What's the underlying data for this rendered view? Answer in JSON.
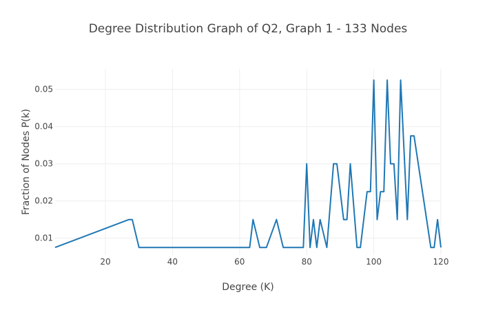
{
  "chart_data": {
    "type": "line",
    "title": "Degree Distribution Graph of Q2, Graph 1 - 133 Nodes",
    "xlabel": "Degree (K)",
    "ylabel": "Fraction of Nodes P(k)",
    "xlim": [
      5,
      120
    ],
    "ylim": [
      0.0055,
      0.0555
    ],
    "x_ticks": [
      20,
      40,
      60,
      80,
      100,
      120
    ],
    "y_ticks": [
      0.01,
      0.02,
      0.03,
      0.04,
      0.05
    ],
    "y_tick_labels": [
      "0.01",
      "0.02",
      "0.03",
      "0.04",
      "0.05"
    ],
    "grid": true,
    "series": [
      {
        "color": "#1f77b4",
        "x": [
          5,
          27,
          28,
          30,
          63,
          64,
          66,
          68,
          71,
          73,
          79,
          80,
          81,
          82,
          83,
          84,
          86,
          88,
          89,
          91,
          92,
          93,
          95,
          96,
          98,
          99,
          100,
          101,
          102,
          103,
          104,
          105,
          106,
          107,
          108,
          110,
          111,
          112,
          117,
          118,
          119,
          120
        ],
        "y": [
          0.0075,
          0.015,
          0.015,
          0.0075,
          0.0075,
          0.015,
          0.0075,
          0.0075,
          0.015,
          0.0075,
          0.0075,
          0.03,
          0.0075,
          0.015,
          0.0075,
          0.015,
          0.0075,
          0.03,
          0.03,
          0.015,
          0.015,
          0.03,
          0.0075,
          0.0075,
          0.0225,
          0.0225,
          0.0525,
          0.015,
          0.0225,
          0.0225,
          0.0525,
          0.03,
          0.03,
          0.015,
          0.0525,
          0.015,
          0.0375,
          0.0375,
          0.0075,
          0.0075,
          0.015,
          0.0075
        ]
      }
    ]
  }
}
